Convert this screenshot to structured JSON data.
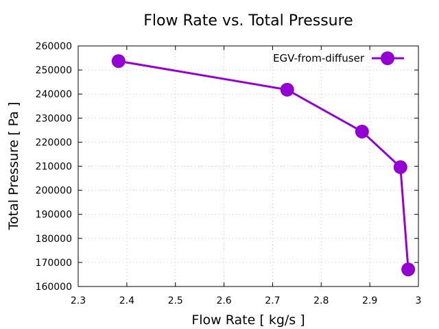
{
  "chart_data": {
    "type": "line",
    "title": "Flow Rate vs. Total Pressure",
    "xlabel": "Flow Rate [ kg/s ]",
    "ylabel": "Total Pressure [ Pa ]",
    "xlim": [
      2.3,
      3.0
    ],
    "ylim": [
      160000,
      260000
    ],
    "xticks": [
      2.3,
      2.4,
      2.5,
      2.6,
      2.7,
      2.8,
      2.9,
      3.0
    ],
    "xtick_labels": [
      "2.3",
      "2.4",
      "2.5",
      "2.6",
      "2.7",
      "2.8",
      "2.9",
      "3"
    ],
    "yticks": [
      160000,
      170000,
      180000,
      190000,
      200000,
      210000,
      220000,
      230000,
      240000,
      250000,
      260000
    ],
    "ytick_labels": [
      "160000",
      "170000",
      "180000",
      "190000",
      "200000",
      "210000",
      "220000",
      "230000",
      "240000",
      "250000",
      "260000"
    ],
    "grid": true,
    "legend_position": "top-right",
    "series": [
      {
        "name": "EGV-from-diffuser",
        "color": "#9400d3",
        "marker": "circle",
        "x": [
          2.383,
          2.73,
          2.884,
          2.963,
          2.979
        ],
        "y": [
          253700,
          241800,
          224400,
          209600,
          167100
        ]
      }
    ]
  }
}
